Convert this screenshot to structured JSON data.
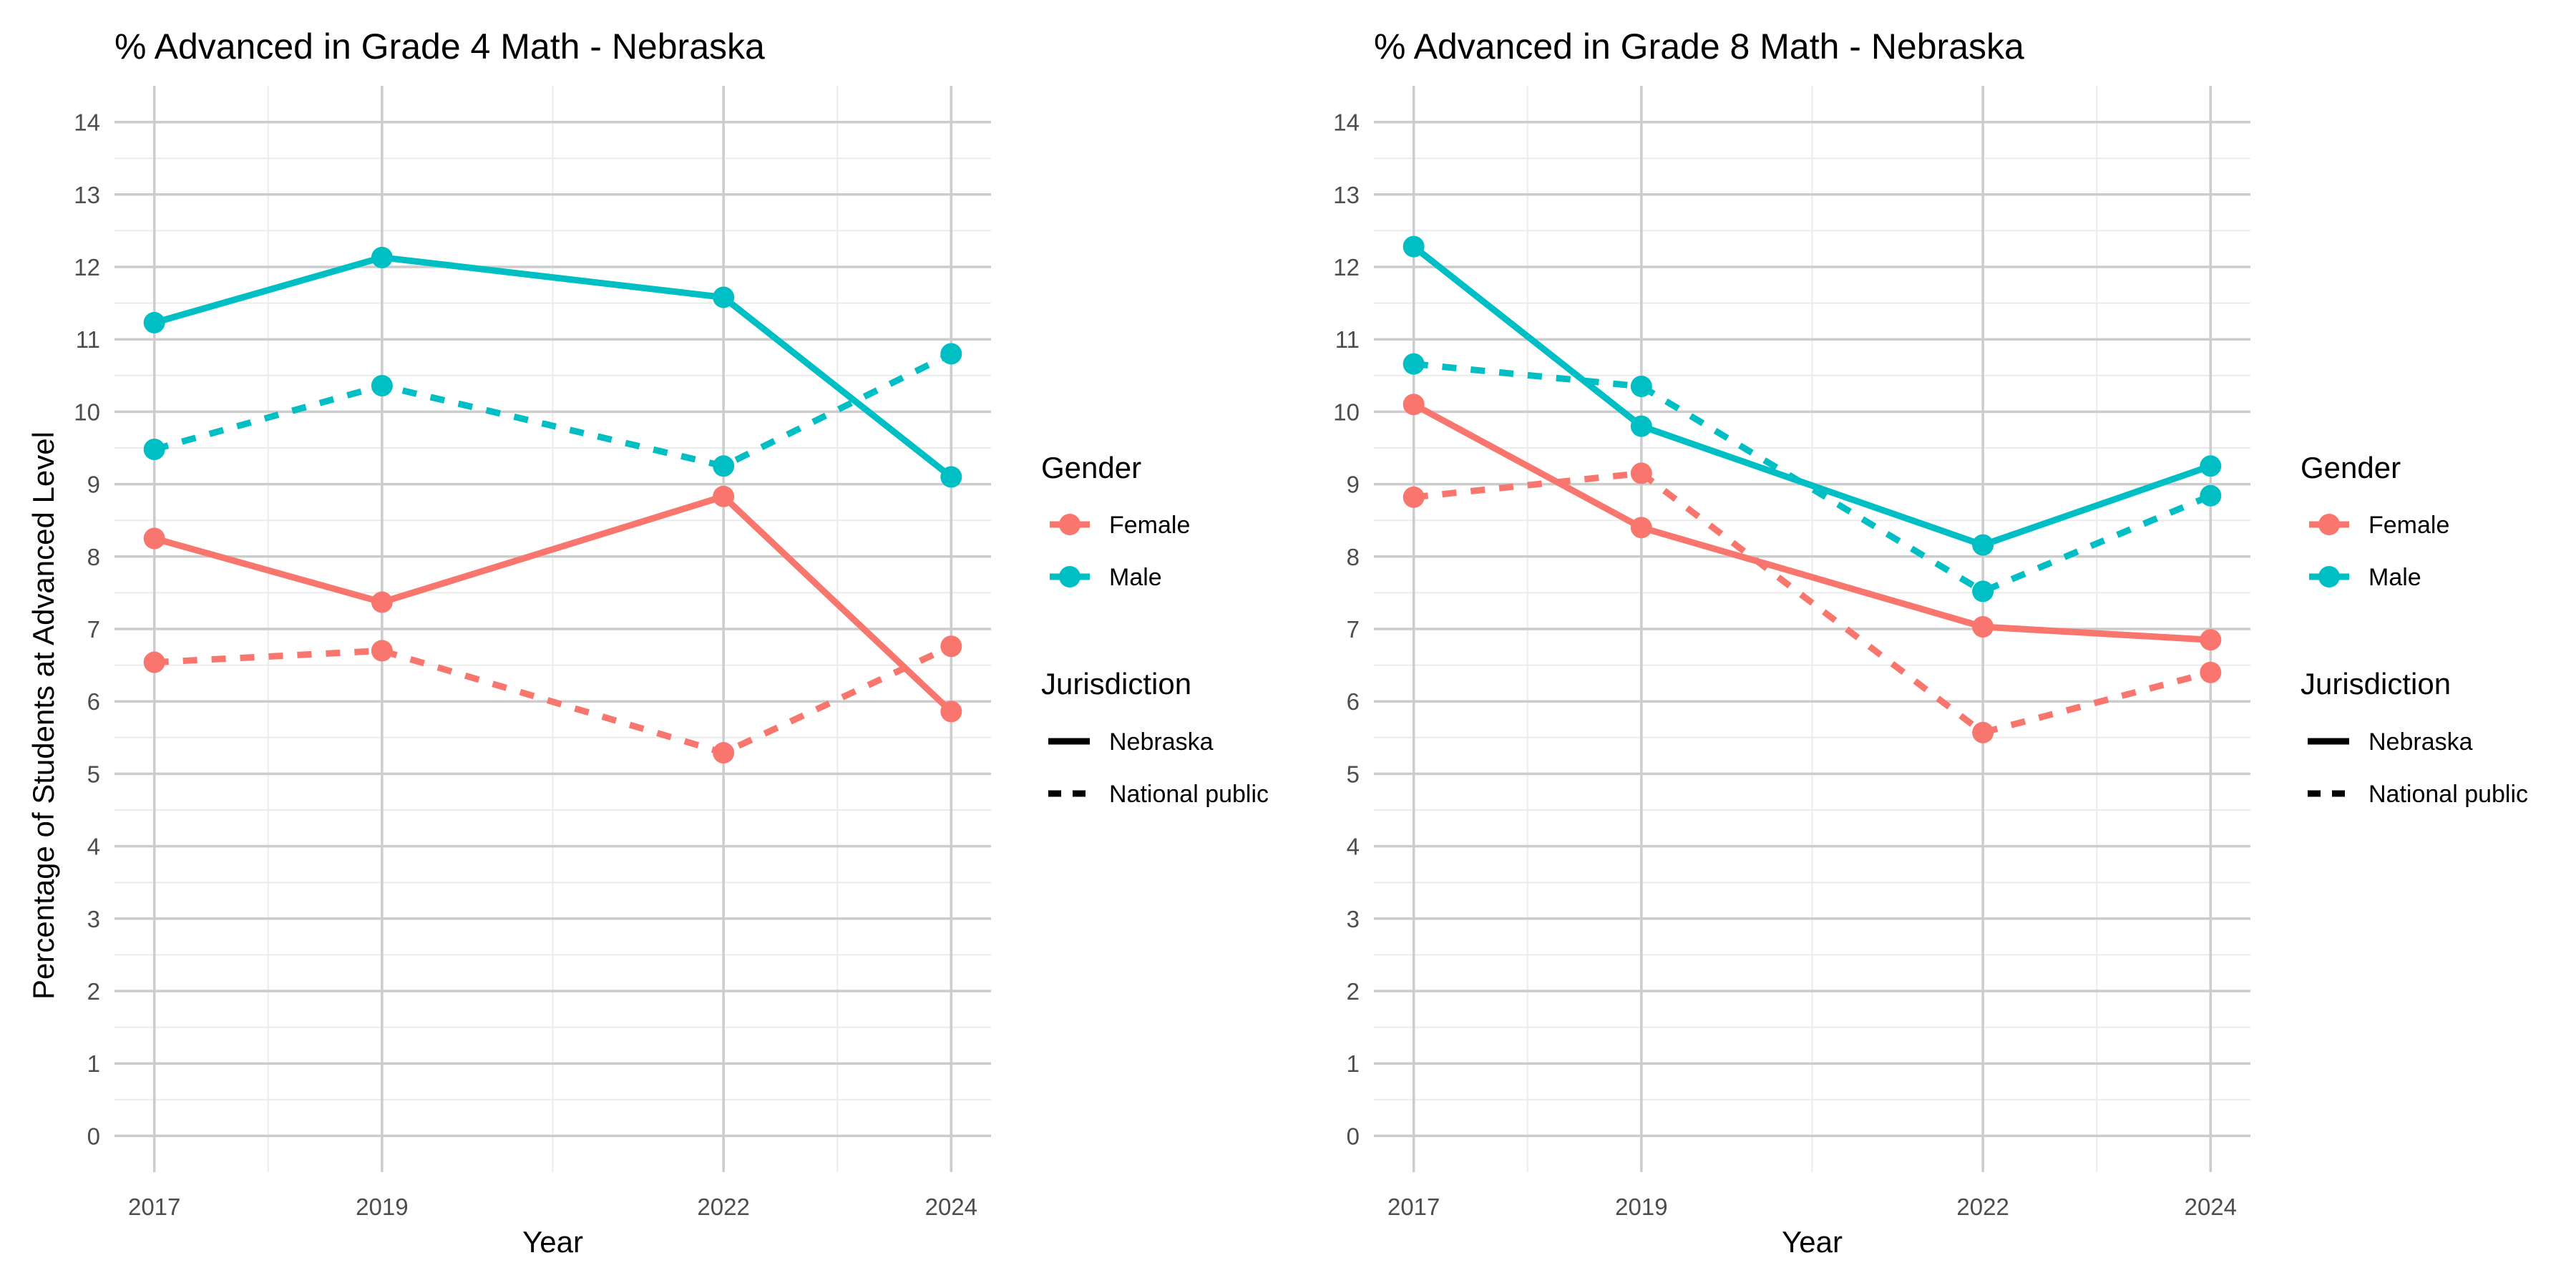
{
  "ylabel": "Percentage of Students at Advanced Level",
  "colors": {
    "Female": "#f8766d",
    "Male": "#00bfc4",
    "grid_major": "#cccccc",
    "grid_minor": "#ebebeb"
  },
  "legend": {
    "gender_title": "Gender",
    "gender_items": [
      "Female",
      "Male"
    ],
    "jurisdiction_title": "Jurisdiction",
    "jurisdiction_items": [
      "Nebraska",
      "National public"
    ]
  },
  "chart_data": [
    {
      "type": "line",
      "title": "% Advanced in Grade 4 Math - Nebraska",
      "xlabel": "Year",
      "ylabel": "Percentage of Students at Advanced Level",
      "x": [
        2017,
        2019,
        2022,
        2024
      ],
      "xlim": [
        2016.65,
        2024.35
      ],
      "ylim": [
        -0.5,
        14.5
      ],
      "yticks": [
        0,
        1,
        2,
        3,
        4,
        5,
        6,
        7,
        8,
        9,
        10,
        11,
        12,
        13,
        14
      ],
      "series": [
        {
          "name": "Female - Nebraska",
          "gender": "Female",
          "jurisdiction": "Nebraska",
          "values": [
            8.25,
            7.37,
            8.83,
            5.86
          ]
        },
        {
          "name": "Female - National public",
          "gender": "Female",
          "jurisdiction": "National public",
          "values": [
            6.54,
            6.7,
            5.29,
            6.76
          ]
        },
        {
          "name": "Male - Nebraska",
          "gender": "Male",
          "jurisdiction": "Nebraska",
          "values": [
            11.23,
            12.13,
            11.58,
            9.1
          ]
        },
        {
          "name": "Male - National public",
          "gender": "Male",
          "jurisdiction": "National public",
          "values": [
            9.48,
            10.36,
            9.25,
            10.8
          ]
        }
      ]
    },
    {
      "type": "line",
      "title": "% Advanced in Grade 8 Math - Nebraska",
      "xlabel": "Year",
      "ylabel": "",
      "x": [
        2017,
        2019,
        2022,
        2024
      ],
      "xlim": [
        2016.65,
        2024.35
      ],
      "ylim": [
        -0.5,
        14.5
      ],
      "yticks": [
        0,
        1,
        2,
        3,
        4,
        5,
        6,
        7,
        8,
        9,
        10,
        11,
        12,
        13,
        14
      ],
      "series": [
        {
          "name": "Female - Nebraska",
          "gender": "Female",
          "jurisdiction": "Nebraska",
          "values": [
            10.1,
            8.4,
            7.03,
            6.85
          ]
        },
        {
          "name": "Female - National public",
          "gender": "Female",
          "jurisdiction": "National public",
          "values": [
            8.82,
            9.15,
            5.57,
            6.4
          ]
        },
        {
          "name": "Male - Nebraska",
          "gender": "Male",
          "jurisdiction": "Nebraska",
          "values": [
            12.28,
            9.8,
            8.16,
            9.25
          ]
        },
        {
          "name": "Male - National public",
          "gender": "Male",
          "jurisdiction": "National public",
          "values": [
            10.66,
            10.35,
            7.52,
            8.84
          ]
        }
      ]
    }
  ]
}
